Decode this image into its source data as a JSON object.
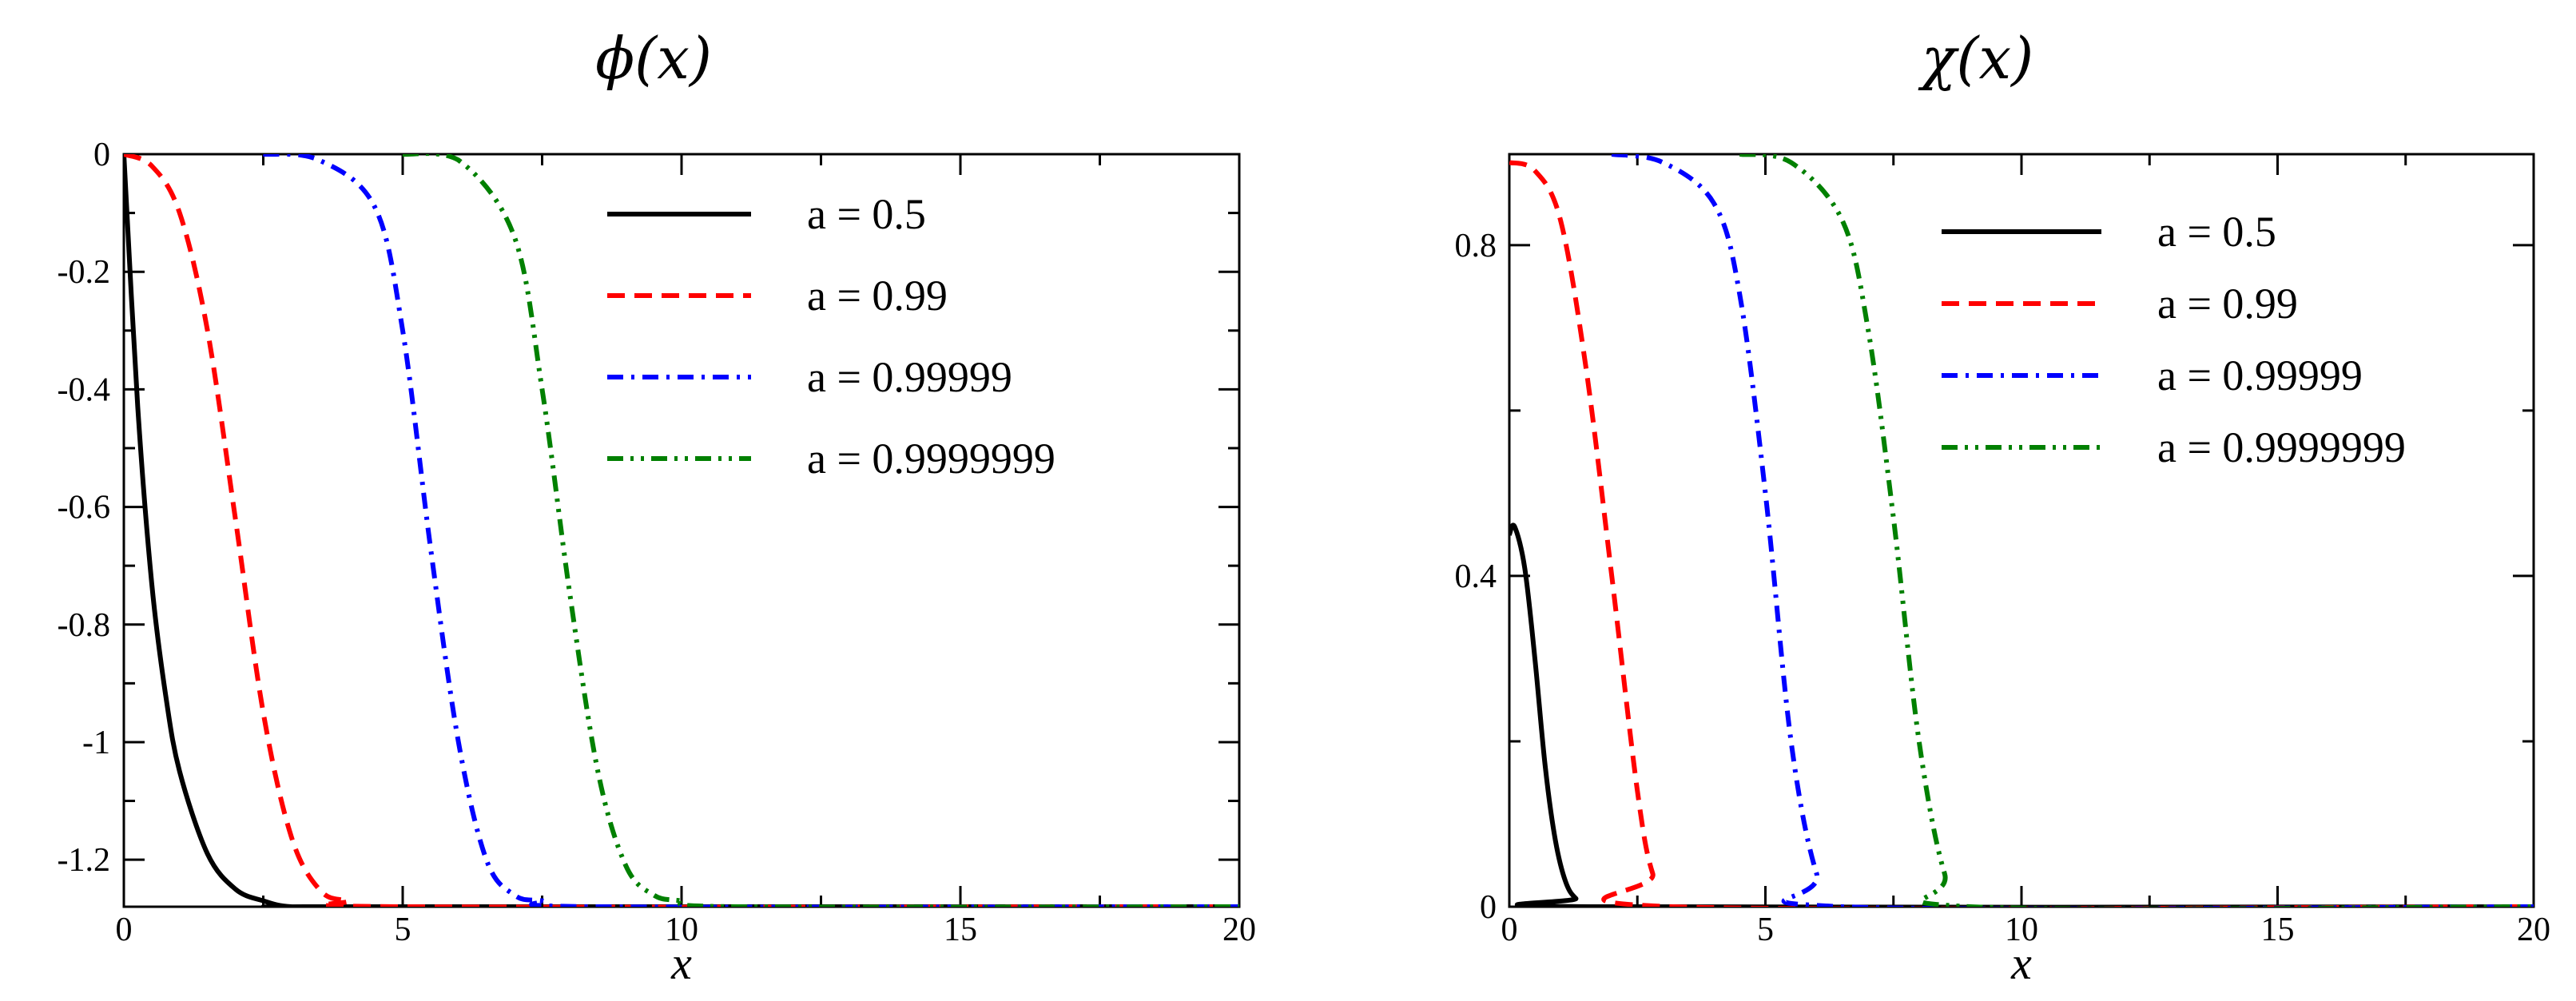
{
  "chart_data": [
    {
      "type": "line",
      "title": "ϕ(x)",
      "xlabel": "x",
      "ylabel": "",
      "xlim": [
        0,
        20
      ],
      "ylim": [
        -1.28,
        0
      ],
      "xticks": [
        "0",
        "5",
        "10",
        "15",
        "20"
      ],
      "yticks": [
        "0",
        "-0.2",
        "-0.4",
        "-0.6",
        "-0.8",
        "-1",
        "-1.2"
      ],
      "ytick_values": [
        0,
        -0.2,
        -0.4,
        -0.6,
        -0.8,
        -1,
        -1.2
      ],
      "legend_position": "top-right",
      "series": [
        {
          "name": "a = 0.5",
          "color": "#000000",
          "dash": "solid",
          "x": [
            0,
            0.25,
            0.5,
            0.75,
            1,
            1.5,
            2,
            2.5,
            3,
            4,
            20
          ],
          "y": [
            0,
            -0.43,
            -0.73,
            -0.92,
            -1.05,
            -1.19,
            -1.25,
            -1.27,
            -1.28,
            -1.28,
            -1.28
          ]
        },
        {
          "name": "a = 0.99",
          "color": "#ff0000",
          "dash": "dashed",
          "x": [
            0,
            0.5,
            1,
            1.5,
            2,
            2.5,
            3,
            3.5,
            4,
            5,
            20
          ],
          "y": [
            0,
            -0.02,
            -0.1,
            -0.3,
            -0.62,
            -0.95,
            -1.16,
            -1.25,
            -1.27,
            -1.28,
            -1.28
          ]
        },
        {
          "name": "a = 0.99999",
          "color": "#0000ff",
          "dash": "dashdot",
          "x": [
            2.5,
            3.5,
            4.5,
            5,
            5.5,
            6,
            6.5,
            7,
            7.5,
            8.5,
            20
          ],
          "y": [
            0,
            -0.01,
            -0.09,
            -0.3,
            -0.67,
            -1.0,
            -1.2,
            -1.26,
            -1.27,
            -1.28,
            -1.28
          ]
        },
        {
          "name": "a = 0.9999999",
          "color": "#008000",
          "dash": "dashdotdot",
          "x": [
            5,
            6,
            7,
            7.5,
            8,
            8.5,
            9,
            9.5,
            10,
            11,
            20
          ],
          "y": [
            0,
            -0.01,
            -0.14,
            -0.4,
            -0.75,
            -1.05,
            -1.21,
            -1.26,
            -1.27,
            -1.28,
            -1.28
          ]
        }
      ]
    },
    {
      "type": "line",
      "title": "χ(x)",
      "xlabel": "x",
      "ylabel": "",
      "xlim": [
        0,
        20
      ],
      "ylim": [
        0,
        0.91
      ],
      "xticks": [
        "0",
        "5",
        "10",
        "15",
        "20"
      ],
      "yticks": [
        "0",
        "0.4",
        "0.8"
      ],
      "ytick_values": [
        0,
        0.4,
        0.8
      ],
      "legend_position": "top-right",
      "series": [
        {
          "name": "a = 0.5",
          "color": "#000000",
          "dash": "solid",
          "x": [
            0,
            0.1,
            0.3,
            0.5,
            0.7,
            0.9,
            1.1,
            1.3,
            1.6,
            20
          ],
          "y": [
            0.45,
            0.46,
            0.41,
            0.3,
            0.17,
            0.08,
            0.03,
            0.01,
            0,
            0
          ]
        },
        {
          "name": "a = 0.99",
          "color": "#ff0000",
          "dash": "dashed",
          "x": [
            0,
            0.5,
            1,
            1.5,
            2,
            2.5,
            2.8,
            3.2,
            20
          ],
          "y": [
            0.9,
            0.89,
            0.83,
            0.65,
            0.4,
            0.14,
            0.04,
            0,
            0
          ]
        },
        {
          "name": "a = 0.99999",
          "color": "#0000ff",
          "dash": "dashdot",
          "x": [
            2,
            3,
            4,
            4.5,
            5,
            5.5,
            6,
            6.5,
            20
          ],
          "y": [
            0.91,
            0.9,
            0.85,
            0.74,
            0.5,
            0.2,
            0.04,
            0,
            0
          ]
        },
        {
          "name": "a = 0.9999999",
          "color": "#008000",
          "dash": "dashdotdot",
          "x": [
            4.5,
            5.5,
            6.5,
            7,
            7.5,
            8,
            8.5,
            9,
            20
          ],
          "y": [
            0.91,
            0.9,
            0.83,
            0.7,
            0.47,
            0.2,
            0.04,
            0,
            0
          ]
        }
      ]
    }
  ]
}
